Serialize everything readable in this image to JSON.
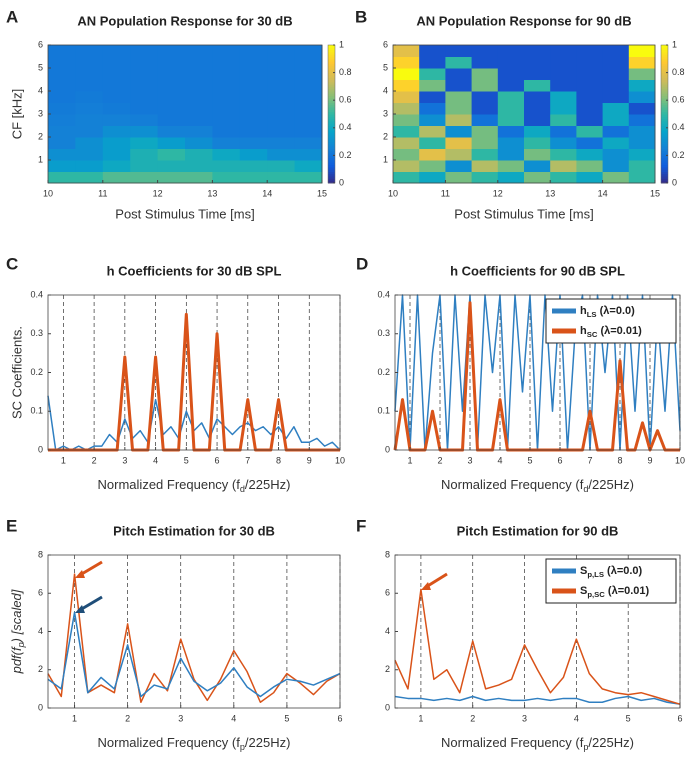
{
  "chart_data": [
    {
      "type": "heatmap",
      "panel": "A",
      "title": "AN Population Response for 30 dB",
      "xlabel": "Post Stimulus Time [ms]",
      "ylabel": "CF [kHz]",
      "xlim": [
        10,
        15
      ],
      "xticks": [
        10,
        11,
        12,
        13,
        14,
        15
      ],
      "ylim": [
        0,
        6
      ],
      "yticks": [
        1,
        2,
        3,
        4,
        5,
        6
      ],
      "zlim": [
        0,
        1
      ],
      "cticks": [
        0,
        0.2,
        0.4,
        0.6,
        0.8,
        1
      ],
      "colormap": [
        "#352a87",
        "#0f5cdd",
        "#1481d6",
        "#06a4ca",
        "#2eb7a4",
        "#87bf77",
        "#d1bb59",
        "#fec832",
        "#f9fb0e"
      ],
      "z": [
        [
          0.5,
          0.5,
          0.55,
          0.55,
          0.55,
          0.55,
          0.5,
          0.5,
          0.5,
          0.5
        ],
        [
          0.35,
          0.35,
          0.4,
          0.45,
          0.45,
          0.45,
          0.45,
          0.45,
          0.45,
          0.4
        ],
        [
          0.3,
          0.3,
          0.35,
          0.45,
          0.5,
          0.45,
          0.4,
          0.35,
          0.3,
          0.3
        ],
        [
          0.25,
          0.3,
          0.35,
          0.4,
          0.35,
          0.3,
          0.25,
          0.25,
          0.25,
          0.25
        ],
        [
          0.25,
          0.25,
          0.3,
          0.3,
          0.25,
          0.25,
          0.22,
          0.22,
          0.22,
          0.22
        ],
        [
          0.24,
          0.25,
          0.25,
          0.24,
          0.22,
          0.22,
          0.22,
          0.22,
          0.22,
          0.22
        ],
        [
          0.23,
          0.24,
          0.23,
          0.22,
          0.22,
          0.22,
          0.22,
          0.22,
          0.22,
          0.22
        ],
        [
          0.22,
          0.23,
          0.22,
          0.22,
          0.22,
          0.22,
          0.22,
          0.22,
          0.22,
          0.22
        ],
        [
          0.22,
          0.22,
          0.22,
          0.22,
          0.22,
          0.22,
          0.22,
          0.22,
          0.22,
          0.22
        ],
        [
          0.22,
          0.22,
          0.22,
          0.22,
          0.22,
          0.22,
          0.22,
          0.22,
          0.22,
          0.22
        ],
        [
          0.22,
          0.22,
          0.22,
          0.22,
          0.22,
          0.22,
          0.22,
          0.22,
          0.22,
          0.22
        ],
        [
          0.22,
          0.22,
          0.22,
          0.22,
          0.22,
          0.22,
          0.22,
          0.22,
          0.22,
          0.22
        ]
      ]
    },
    {
      "type": "heatmap",
      "panel": "B",
      "title": "AN Population Response for 90 dB",
      "xlabel": "Post Stimulus Time [ms]",
      "xlim": [
        10,
        15
      ],
      "xticks": [
        10,
        11,
        12,
        13,
        14,
        15
      ],
      "ylim": [
        0,
        6
      ],
      "yticks": [
        1,
        2,
        3,
        4,
        5,
        6
      ],
      "zlim": [
        0,
        1
      ],
      "cticks": [
        0,
        0.2,
        0.4,
        0.6,
        0.8,
        1
      ],
      "colormap": [
        "#352a87",
        "#0f5cdd",
        "#1481d6",
        "#06a4ca",
        "#2eb7a4",
        "#87bf77",
        "#d1bb59",
        "#fec832",
        "#f9fb0e"
      ],
      "z": [
        [
          0.5,
          0.4,
          0.6,
          0.5,
          0.4,
          0.6,
          0.5,
          0.4,
          0.6,
          0.5
        ],
        [
          0.7,
          0.6,
          0.3,
          0.7,
          0.6,
          0.3,
          0.7,
          0.6,
          0.3,
          0.5
        ],
        [
          0.6,
          0.8,
          0.7,
          0.5,
          0.3,
          0.6,
          0.5,
          0.4,
          0.3,
          0.4
        ],
        [
          0.7,
          0.5,
          0.8,
          0.6,
          0.3,
          0.5,
          0.3,
          0.2,
          0.4,
          0.3
        ],
        [
          0.5,
          0.7,
          0.3,
          0.6,
          0.2,
          0.4,
          0.2,
          0.5,
          0.2,
          0.3
        ],
        [
          0.6,
          0.3,
          0.7,
          0.2,
          0.5,
          0.1,
          0.5,
          0.1,
          0.4,
          0.2
        ],
        [
          0.7,
          0.2,
          0.6,
          0.1,
          0.5,
          0.1,
          0.4,
          0.1,
          0.4,
          0.1
        ],
        [
          0.8,
          0.1,
          0.6,
          0.1,
          0.5,
          0.1,
          0.4,
          0.1,
          0.1,
          0.3
        ],
        [
          0.9,
          0.6,
          0.1,
          0.6,
          0.1,
          0.5,
          0.1,
          0.1,
          0.1,
          0.4
        ],
        [
          1,
          0.5,
          0.1,
          0.6,
          0.1,
          0.1,
          0.1,
          0.1,
          0.1,
          0.6
        ],
        [
          0.9,
          0.1,
          0.5,
          0.1,
          0.1,
          0.1,
          0.1,
          0.1,
          0.1,
          0.9
        ],
        [
          0.8,
          0.1,
          0.1,
          0.1,
          0.1,
          0.1,
          0.1,
          0.1,
          0.1,
          1
        ]
      ]
    },
    {
      "type": "line",
      "panel": "C",
      "title": "h Coefficients for 30 dB SPL",
      "xlabel": [
        "Normalized Frequency (f",
        "d",
        "/225Hz)"
      ],
      "ylabel": "SC Coefficients.",
      "xlim": [
        0.5,
        10
      ],
      "xticks": [
        1,
        2,
        3,
        4,
        5,
        6,
        7,
        8,
        9,
        10
      ],
      "ylim": [
        0,
        0.4
      ],
      "yticks": [
        0,
        0.1,
        0.2,
        0.3,
        0.4
      ],
      "vgrid": true,
      "legend": false,
      "x": [
        0.5,
        0.75,
        1,
        1.25,
        1.5,
        1.75,
        2,
        2.25,
        2.5,
        2.75,
        3,
        3.25,
        3.5,
        3.75,
        4,
        4.25,
        4.5,
        4.75,
        5,
        5.25,
        5.5,
        5.75,
        6,
        6.25,
        6.5,
        6.75,
        7,
        7.25,
        7.5,
        7.75,
        8,
        8.25,
        8.5,
        8.75,
        9,
        9.25,
        9.5,
        9.75,
        10
      ],
      "series": [
        {
          "color": "#2f7fc1",
          "width": 1.5,
          "values": [
            0.14,
            0,
            0.01,
            0,
            0.01,
            0,
            0.01,
            0.01,
            0.04,
            0.02,
            0.08,
            0.03,
            0.05,
            0.02,
            0.13,
            0.04,
            0.06,
            0.03,
            0.1,
            0.05,
            0.07,
            0.03,
            0.08,
            0.06,
            0.04,
            0.06,
            0.07,
            0.05,
            0.06,
            0.04,
            0.06,
            0.03,
            0.06,
            0.02,
            0.02,
            0.03,
            0.01,
            0.02,
            0
          ]
        },
        {
          "color": "#d95319",
          "width": 3,
          "values": [
            0,
            0,
            0,
            0,
            0,
            0,
            0,
            0,
            0,
            0,
            0.24,
            0,
            0,
            0,
            0.24,
            0,
            0,
            0,
            0.35,
            0,
            0,
            0,
            0.3,
            0,
            0,
            0,
            0.13,
            0,
            0,
            0,
            0.13,
            0,
            0,
            0,
            0,
            0,
            0,
            0,
            0
          ]
        }
      ]
    },
    {
      "type": "line",
      "panel": "D",
      "title": "h Coefficients for 90 dB SPL",
      "xlabel": [
        "Normalized Frequency (f",
        "d",
        "/225Hz)"
      ],
      "xlim": [
        0.5,
        10
      ],
      "xticks": [
        1,
        2,
        3,
        4,
        5,
        6,
        7,
        8,
        9,
        10
      ],
      "ylim": [
        0,
        0.4
      ],
      "yticks": [
        0,
        0.1,
        0.2,
        0.3,
        0.4
      ],
      "vgrid": true,
      "legend": "northeast",
      "x": [
        0.5,
        0.75,
        1,
        1.25,
        1.5,
        1.75,
        2,
        2.25,
        2.5,
        2.75,
        3,
        3.25,
        3.5,
        3.75,
        4,
        4.25,
        4.5,
        4.75,
        5,
        5.25,
        5.5,
        5.75,
        6,
        6.25,
        6.5,
        6.75,
        7,
        7.25,
        7.5,
        7.75,
        8,
        8.25,
        8.5,
        8.75,
        9,
        9.25,
        9.5,
        9.75,
        10
      ],
      "series": [
        {
          "name": [
            "h",
            "LS",
            " (λ=0.0)"
          ],
          "color": "#2f7fc1",
          "width": 1.5,
          "values": [
            0.1,
            0.4,
            0,
            0.4,
            0,
            0.25,
            0.4,
            0,
            0.4,
            0.1,
            0.4,
            0,
            0.4,
            0.2,
            0.4,
            0,
            0.4,
            0.15,
            0.4,
            0,
            0.4,
            0.1,
            0.4,
            0,
            0.3,
            0.4,
            0,
            0.4,
            0.2,
            0.4,
            0,
            0.4,
            0.1,
            0.4,
            0,
            0.35,
            0.1,
            0.4,
            0.05
          ]
        },
        {
          "name": [
            "h",
            "SC",
            " (λ=0.01)"
          ],
          "color": "#d95319",
          "width": 3,
          "values": [
            0,
            0.13,
            0,
            0,
            0,
            0.1,
            0,
            0,
            0,
            0,
            0.38,
            0,
            0,
            0,
            0.13,
            0,
            0,
            0,
            0,
            0,
            0,
            0,
            0,
            0,
            0,
            0,
            0.1,
            0,
            0,
            0,
            0.23,
            0,
            0,
            0.07,
            0,
            0.05,
            0,
            0,
            0
          ]
        }
      ]
    },
    {
      "type": "line",
      "panel": "E",
      "title": "Pitch Estimation for 30 dB",
      "xlabel": [
        "Normalized Frequency (f",
        "p",
        "/225Hz)"
      ],
      "ylabel": [
        "pdf(f",
        "p",
        ") [scaled]"
      ],
      "ylabel_italic": true,
      "xlim": [
        0.5,
        6
      ],
      "xticks": [
        1,
        2,
        3,
        4,
        5,
        6
      ],
      "ylim": [
        0,
        8
      ],
      "yticks": [
        0,
        2,
        4,
        6,
        8
      ],
      "vgrid": true,
      "legend": false,
      "x": [
        0.5,
        0.75,
        1,
        1.25,
        1.5,
        1.75,
        2,
        2.25,
        2.5,
        2.75,
        3,
        3.25,
        3.5,
        3.75,
        4,
        4.25,
        4.5,
        4.75,
        5,
        5.25,
        5.5,
        5.75,
        6
      ],
      "series": [
        {
          "color": "#d95319",
          "width": 1.5,
          "values": [
            1.8,
            0.6,
            7.0,
            0.8,
            1.2,
            0.8,
            4.4,
            0.3,
            1.8,
            0.9,
            3.6,
            1.5,
            0.4,
            1.5,
            3.0,
            1.9,
            0.3,
            0.8,
            1.8,
            1.3,
            0.7,
            1.4,
            1.8
          ]
        },
        {
          "color": "#2f7fc1",
          "width": 1.5,
          "values": [
            1.5,
            1.0,
            5.0,
            0.8,
            1.6,
            1.0,
            3.3,
            0.6,
            1.2,
            1.0,
            2.6,
            1.4,
            0.9,
            1.3,
            2.1,
            1.1,
            0.6,
            1.1,
            1.5,
            1.4,
            1.2,
            1.5,
            1.8
          ]
        }
      ]
    },
    {
      "type": "line",
      "panel": "F",
      "title": "Pitch Estimation for 90 dB",
      "xlabel": [
        "Normalized Frequency (f",
        "p",
        "/225Hz)"
      ],
      "xlim": [
        0.5,
        6
      ],
      "xticks": [
        1,
        2,
        3,
        4,
        5,
        6
      ],
      "ylim": [
        0,
        8
      ],
      "yticks": [
        0,
        2,
        4,
        6,
        8
      ],
      "vgrid": true,
      "legend": "northeast",
      "x": [
        0.5,
        0.75,
        1,
        1.25,
        1.5,
        1.75,
        2,
        2.25,
        2.5,
        2.75,
        3,
        3.25,
        3.5,
        3.75,
        4,
        4.25,
        4.5,
        4.75,
        5,
        5.25,
        5.5,
        5.75,
        6
      ],
      "series": [
        {
          "name": [
            "S",
            "p,LS",
            " (λ=0.0)"
          ],
          "color": "#2f7fc1",
          "width": 1.5,
          "values": [
            0.6,
            0.5,
            0.5,
            0.4,
            0.5,
            0.4,
            0.6,
            0.4,
            0.5,
            0.4,
            0.4,
            0.5,
            0.4,
            0.5,
            0.5,
            0.3,
            0.3,
            0.5,
            0.6,
            0.4,
            0.5,
            0.3,
            0.2
          ]
        },
        {
          "name": [
            "S",
            "p,SC",
            " (λ=0.01)"
          ],
          "color": "#d95319",
          "width": 1.5,
          "values": [
            2.5,
            1.0,
            6.2,
            1.5,
            2.0,
            0.8,
            3.5,
            1.0,
            1.2,
            1.5,
            3.3,
            2.0,
            0.8,
            1.6,
            3.6,
            1.8,
            1.0,
            0.8,
            0.7,
            0.8,
            0.6,
            0.4,
            0.2
          ]
        }
      ]
    }
  ]
}
